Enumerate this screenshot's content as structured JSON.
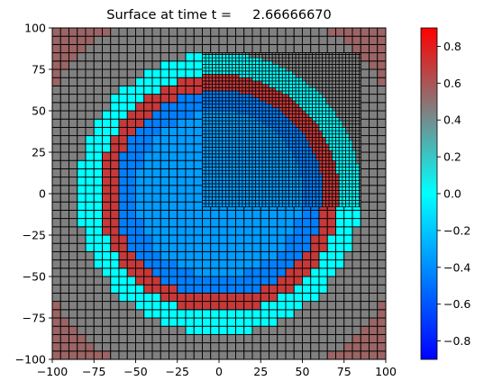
{
  "chart_data": {
    "type": "heatmap",
    "title": "Surface at time t =     2.66666670",
    "xlabel": "",
    "ylabel": "",
    "xlim": [
      -100,
      100
    ],
    "ylim": [
      -100,
      100
    ],
    "x_ticks": [
      "−100",
      "−75",
      "−50",
      "−25",
      "0",
      "25",
      "50",
      "75",
      "100"
    ],
    "y_ticks": [
      "−100",
      "−75",
      "−50",
      "−25",
      "0",
      "25",
      "50",
      "75",
      "100"
    ],
    "grid": false,
    "surface": {
      "coarse_cell_size": 5,
      "fine_patch": {
        "x_range": [
          -10,
          85
        ],
        "y_range": [
          -8,
          85
        ],
        "cell_size": 2
      },
      "background_value": 0.45,
      "corner_value": 0.55,
      "wet_region": {
        "center": [
          0,
          0
        ],
        "radius": 85,
        "value": 0.0
      },
      "ring": {
        "center": [
          0,
          0
        ],
        "inner_radius": 62,
        "outer_radius": 72,
        "value": 0.7
      },
      "inner_disk": {
        "center": [
          0,
          0
        ],
        "radius": 62,
        "value": -0.35,
        "value_near_ring": -0.45
      }
    },
    "colorbar": {
      "min": -0.9,
      "max": 0.9,
      "ticks": [
        "0.8",
        "0.6",
        "0.4",
        "0.2",
        "0.0",
        "−0.2",
        "−0.4",
        "−0.6",
        "−0.8"
      ],
      "colors": [
        "#0000ff",
        "#00ffff",
        "#808080",
        "#ff0000"
      ]
    }
  }
}
